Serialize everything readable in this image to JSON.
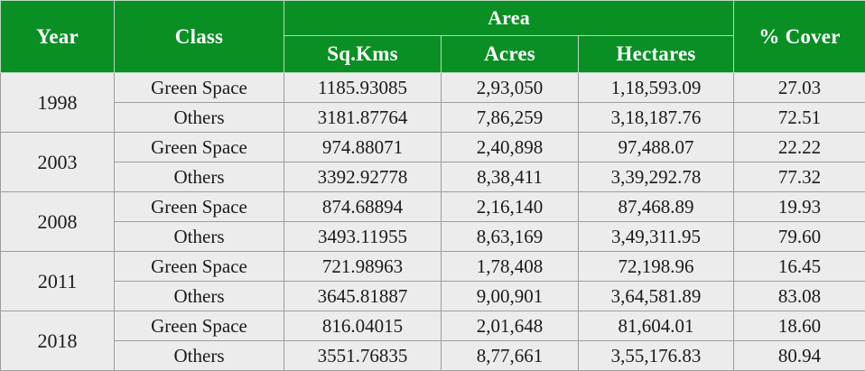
{
  "headers": {
    "year": "Year",
    "class": "Class",
    "area": "Area",
    "sq_kms": "Sq.Kms",
    "acres": "Acres",
    "hectares": "Hectares",
    "cover": "% Cover"
  },
  "groups": [
    {
      "year": "1998",
      "rows": [
        {
          "class": "Green Space",
          "sq_kms": "1185.93085",
          "acres": "2,93,050",
          "hectares": "1,18,593.09",
          "cover": "27.03"
        },
        {
          "class": "Others",
          "sq_kms": "3181.87764",
          "acres": "7,86,259",
          "hectares": "3,18,187.76",
          "cover": "72.51"
        }
      ]
    },
    {
      "year": "2003",
      "rows": [
        {
          "class": "Green Space",
          "sq_kms": "974.88071",
          "acres": "2,40,898",
          "hectares": "97,488.07",
          "cover": "22.22"
        },
        {
          "class": "Others",
          "sq_kms": "3392.92778",
          "acres": "8,38,411",
          "hectares": "3,39,292.78",
          "cover": "77.32"
        }
      ]
    },
    {
      "year": "2008",
      "rows": [
        {
          "class": "Green Space",
          "sq_kms": "874.68894",
          "acres": "2,16,140",
          "hectares": "87,468.89",
          "cover": "19.93"
        },
        {
          "class": "Others",
          "sq_kms": "3493.11955",
          "acres": "8,63,169",
          "hectares": "3,49,311.95",
          "cover": "79.60"
        }
      ]
    },
    {
      "year": "2011",
      "rows": [
        {
          "class": "Green Space",
          "sq_kms": "721.98963",
          "acres": "1,78,408",
          "hectares": "72,198.96",
          "cover": "16.45"
        },
        {
          "class": "Others",
          "sq_kms": "3645.81887",
          "acres": "9,00,901",
          "hectares": "3,64,581.89",
          "cover": "83.08"
        }
      ]
    },
    {
      "year": "2018",
      "rows": [
        {
          "class": "Green Space",
          "sq_kms": "816.04015",
          "acres": "2,01,648",
          "hectares": "81,604.01",
          "cover": "18.60"
        },
        {
          "class": "Others",
          "sq_kms": "3551.76835",
          "acres": "8,77,661",
          "hectares": "3,55,176.83",
          "cover": "80.94"
        }
      ]
    }
  ]
}
